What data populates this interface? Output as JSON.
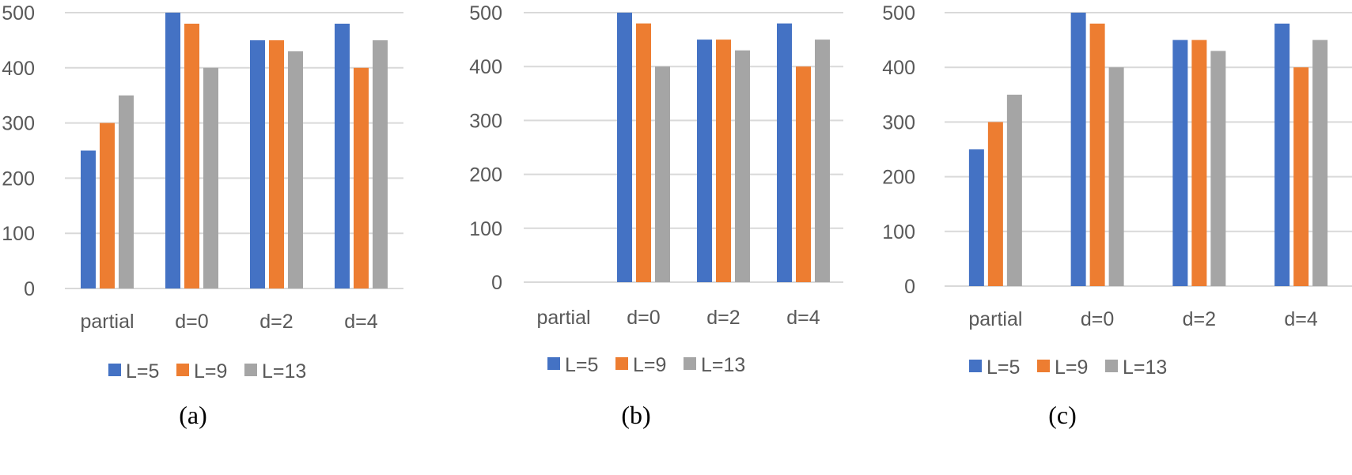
{
  "colors": {
    "L5": "#4472C4",
    "L9": "#ED7D31",
    "L13": "#A5A5A5",
    "grid": "#D9D9D9",
    "text": "#595959"
  },
  "chart_data": [
    {
      "type": "bar",
      "caption": "(a)",
      "categories": [
        "partial",
        "d=0",
        "d=2",
        "d=4"
      ],
      "ylim": [
        0,
        500
      ],
      "yticks": [
        0,
        100,
        200,
        300,
        400,
        500
      ],
      "grid": true,
      "legend_position": "bottom",
      "series": [
        {
          "name": "L=5",
          "values": [
            250,
            500,
            450,
            480
          ]
        },
        {
          "name": "L=9",
          "values": [
            300,
            480,
            450,
            400
          ]
        },
        {
          "name": "L=13",
          "values": [
            350,
            400,
            430,
            450
          ]
        }
      ]
    },
    {
      "type": "bar",
      "caption": "(b)",
      "categories": [
        "partial",
        "d=0",
        "d=2",
        "d=4"
      ],
      "ylim": [
        0,
        500
      ],
      "yticks": [
        0,
        100,
        200,
        300,
        400,
        500
      ],
      "grid": true,
      "legend_position": "bottom",
      "series": [
        {
          "name": "L=5",
          "values": [
            0,
            500,
            450,
            480
          ]
        },
        {
          "name": "L=9",
          "values": [
            0,
            480,
            450,
            400
          ]
        },
        {
          "name": "L=13",
          "values": [
            0,
            400,
            430,
            450
          ]
        }
      ]
    },
    {
      "type": "bar",
      "caption": "(c)",
      "categories": [
        "partial",
        "d=0",
        "d=2",
        "d=4"
      ],
      "ylim": [
        0,
        500
      ],
      "yticks": [
        0,
        100,
        200,
        300,
        400,
        500
      ],
      "grid": true,
      "legend_position": "bottom",
      "series": [
        {
          "name": "L=5",
          "values": [
            250,
            500,
            450,
            480
          ]
        },
        {
          "name": "L=9",
          "values": [
            300,
            480,
            450,
            400
          ]
        },
        {
          "name": "L=13",
          "values": [
            350,
            400,
            430,
            450
          ]
        }
      ]
    }
  ]
}
